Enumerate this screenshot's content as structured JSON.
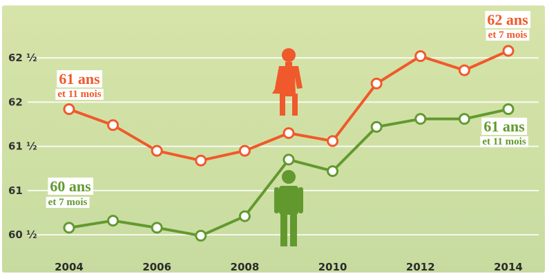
{
  "chart_data": {
    "type": "line",
    "x": [
      2004,
      2005,
      2006,
      2007,
      2008,
      2009,
      2010,
      2011,
      2012,
      2013,
      2014
    ],
    "x_tick_labels": [
      "2004",
      "2006",
      "2008",
      "2010",
      "2012",
      "2014"
    ],
    "y_tick_labels": [
      "60 ½",
      "61",
      "61 ½",
      "62",
      "62 ½"
    ],
    "y_tick_values": [
      60.5,
      61,
      61.5,
      62,
      62.5
    ],
    "ylim": [
      60.4,
      62.75
    ],
    "grid": true,
    "series": [
      {
        "key": "women",
        "color": "#f0592b",
        "icon": "woman-icon",
        "values": [
          61.92,
          61.74,
          61.45,
          61.34,
          61.45,
          61.65,
          61.56,
          62.21,
          62.52,
          62.36,
          62.58
        ],
        "start_label": {
          "big": "61 ans",
          "small": "et 11 mois"
        },
        "end_label": {
          "big": "62 ans",
          "small": "et 7 mois"
        }
      },
      {
        "key": "men",
        "color": "#62992f",
        "icon": "man-icon",
        "values": [
          60.58,
          60.66,
          60.58,
          60.49,
          60.71,
          61.35,
          61.22,
          61.72,
          61.81,
          61.81,
          61.92
        ],
        "start_label": {
          "big": "60 ans",
          "small": "et 7 mois"
        },
        "end_label": {
          "big": "61 ans",
          "small": "et 11 mois"
        }
      }
    ]
  }
}
